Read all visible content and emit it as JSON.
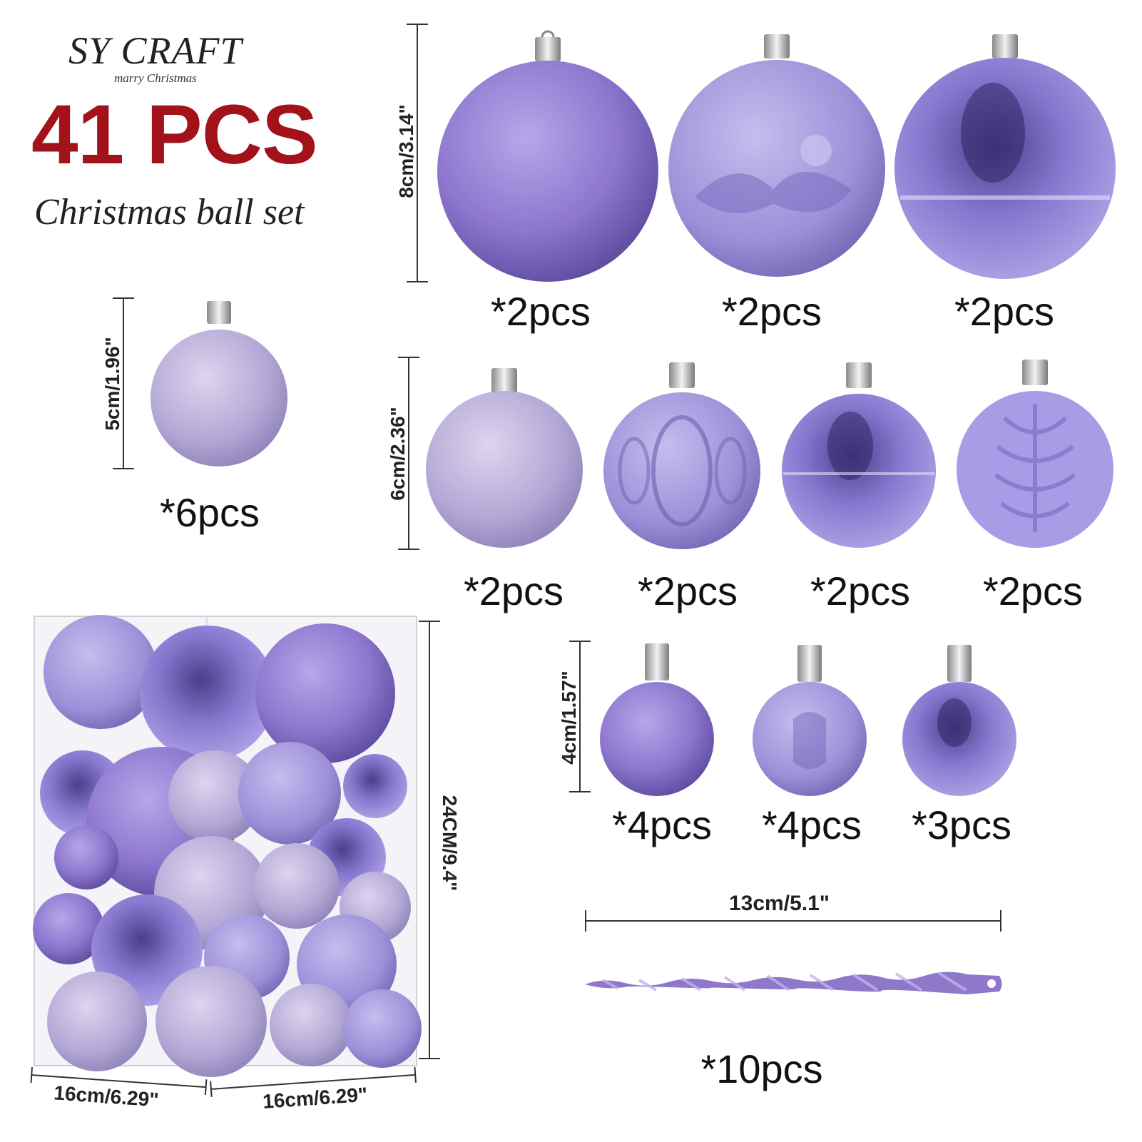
{
  "brand": {
    "name": "SY CRAFT",
    "tagline": "marry Christmas"
  },
  "headline": {
    "count": "41 PCS",
    "subtitle": "Christmas ball set"
  },
  "sizes": {
    "cm8": "8cm/3.14\"",
    "cm5": "5cm/1.96\"",
    "cm6": "6cm/2.36\"",
    "cm4": "4cm/1.57\"",
    "icicle": "13cm/5.1\"",
    "box_height": "24CM/9.4\"",
    "box_width_left": "16cm/6.29\"",
    "box_width_right": "16cm/6.29\""
  },
  "quantities": {
    "row1": [
      "*2pcs",
      "*2pcs",
      "*2pcs"
    ],
    "single5": "*6pcs",
    "row2": [
      "*2pcs",
      "*2pcs",
      "*2pcs",
      "*2pcs"
    ],
    "row3": [
      "*4pcs",
      "*4pcs",
      "*3pcs"
    ],
    "icicle": "*10pcs"
  },
  "colors": {
    "accent": "#a3121a",
    "ornament": "#9b8fd6",
    "ornament_dark": "#6f5fb5",
    "cap": "#c9c9c9"
  },
  "icons": [
    "glitter-ball-icon",
    "santa-sleigh-ball-icon",
    "shiny-ball-icon",
    "matte-ball-icon",
    "embossed-ball-icon",
    "icicle-icon",
    "gift-box-icon"
  ]
}
